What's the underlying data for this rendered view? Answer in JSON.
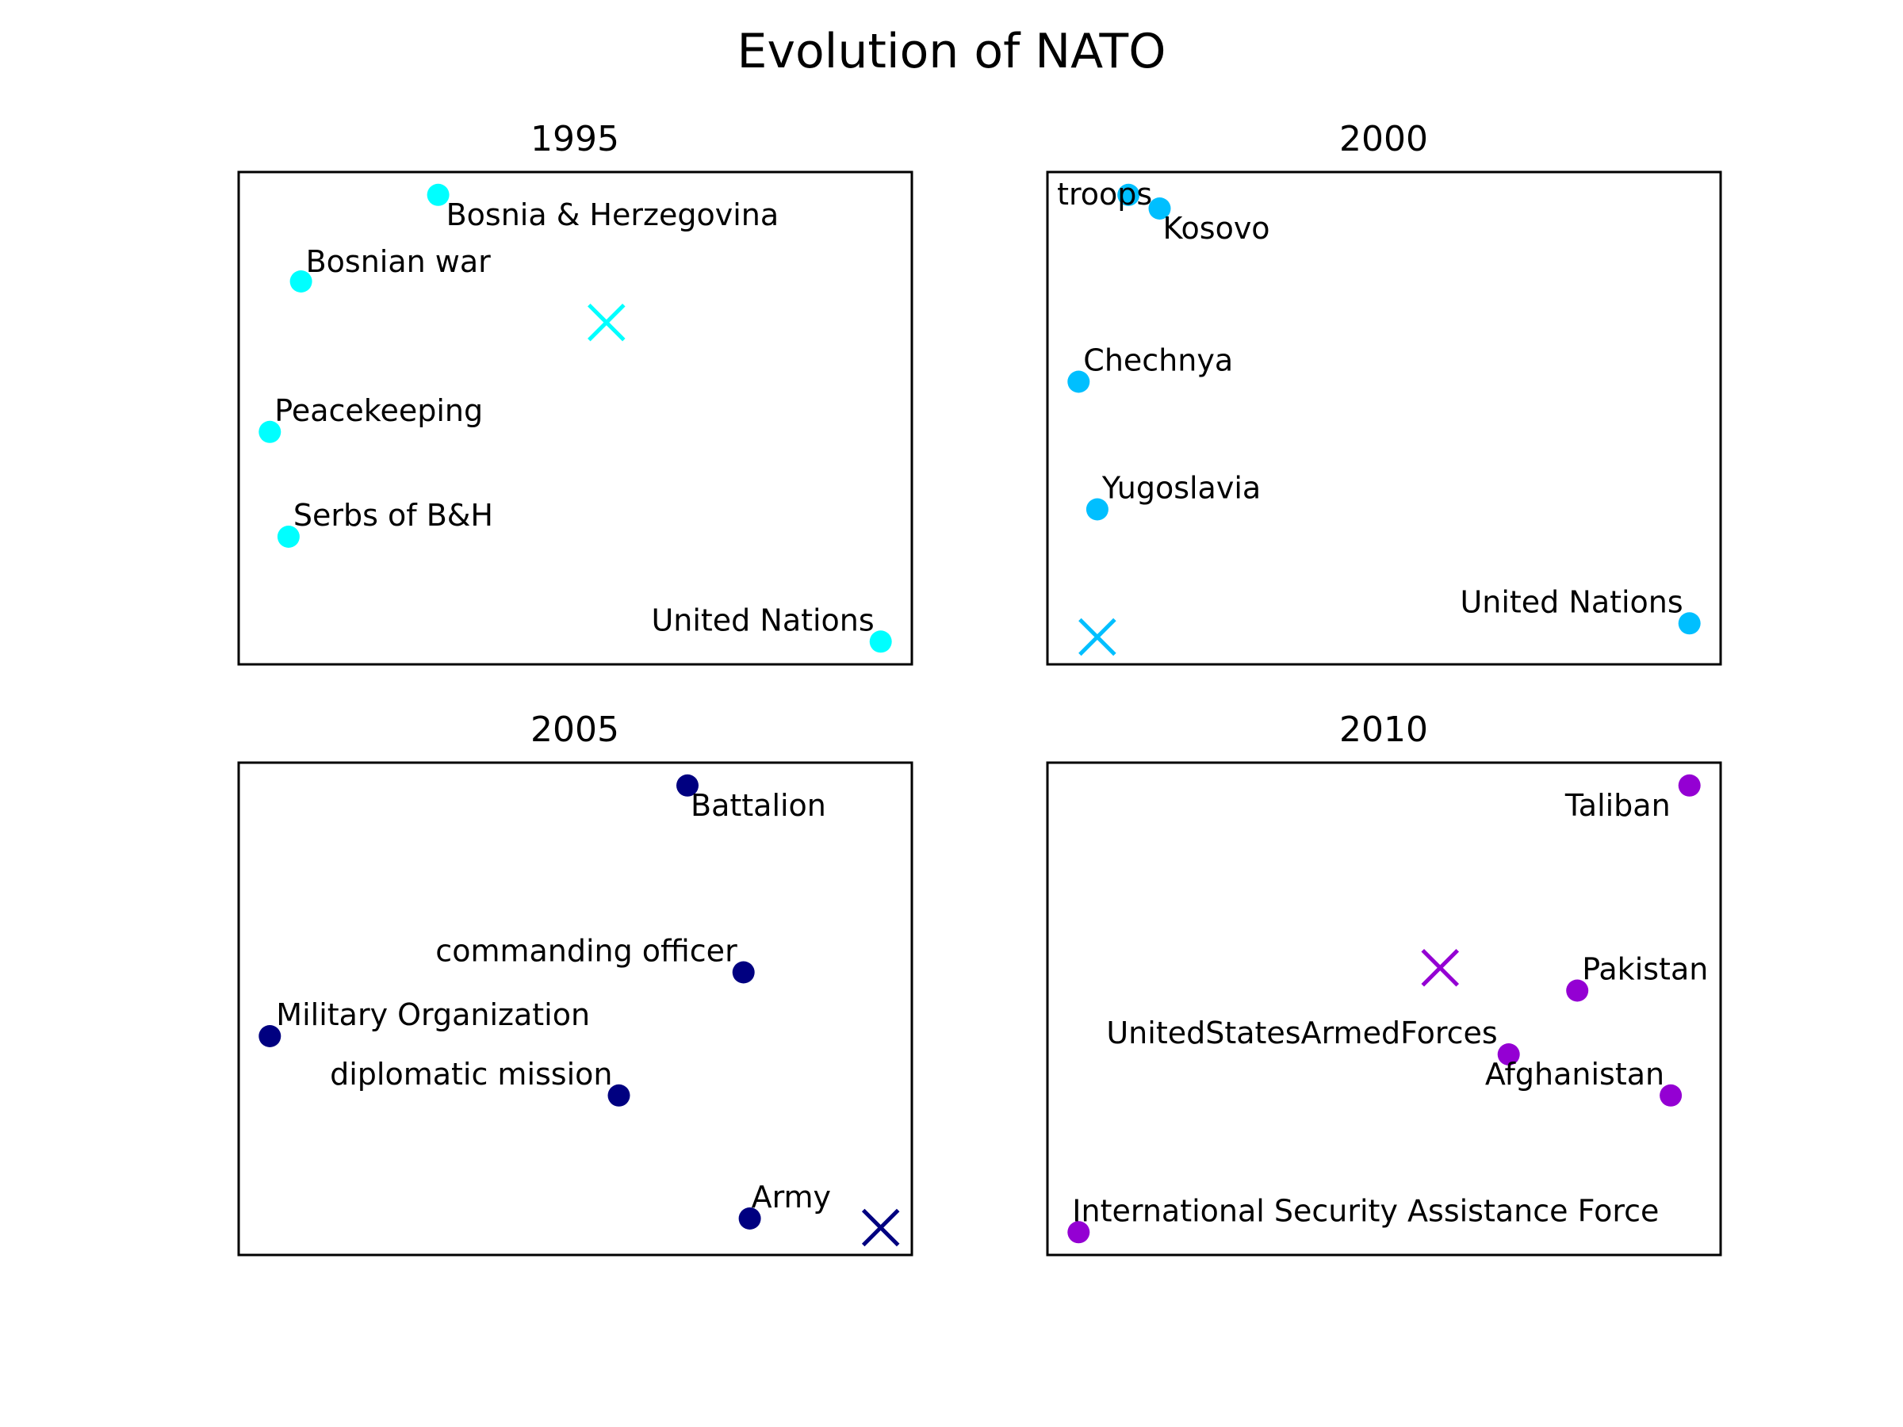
{
  "title": "Evolution of NATO",
  "chart_data": [
    {
      "type": "scatter",
      "title": "1995",
      "color": "#00ffff",
      "xlim": [
        0,
        10.8
      ],
      "ylim": [
        0,
        10.8
      ],
      "points": [
        {
          "label": "Bosnia & Herzegovina",
          "x": 3.2,
          "y": 10.3
        },
        {
          "label": "Bosnian war",
          "x": 1.0,
          "y": 8.4
        },
        {
          "label": "Peacekeeping",
          "x": 0.5,
          "y": 5.1
        },
        {
          "label": "Serbs of B&H",
          "x": 0.8,
          "y": 2.8
        },
        {
          "label": "United Nations",
          "x": 10.3,
          "y": 0.5
        }
      ],
      "centroid": {
        "x": 5.9,
        "y": 7.5
      }
    },
    {
      "type": "scatter",
      "title": "2000",
      "color": "#00bfff",
      "xlim": [
        0,
        10.8
      ],
      "ylim": [
        0,
        10.8
      ],
      "points": [
        {
          "label": "troops",
          "x": 1.3,
          "y": 10.3
        },
        {
          "label": "Kosovo",
          "x": 1.8,
          "y": 10.0
        },
        {
          "label": "Chechnya",
          "x": 0.5,
          "y": 6.2
        },
        {
          "label": "Yugoslavia",
          "x": 0.8,
          "y": 3.4
        },
        {
          "label": "United Nations",
          "x": 10.3,
          "y": 0.9
        }
      ],
      "centroid": {
        "x": 0.8,
        "y": 0.6
      }
    },
    {
      "type": "scatter",
      "title": "2005",
      "color": "#000080",
      "xlim": [
        0,
        10.8
      ],
      "ylim": [
        0,
        10.8
      ],
      "points": [
        {
          "label": "Battalion",
          "x": 7.2,
          "y": 10.3
        },
        {
          "label": "commanding officer",
          "x": 8.1,
          "y": 6.2
        },
        {
          "label": "Military Organization",
          "x": 0.5,
          "y": 4.8
        },
        {
          "label": "diplomatic mission",
          "x": 6.1,
          "y": 3.5
        },
        {
          "label": "Army",
          "x": 8.2,
          "y": 0.8
        }
      ],
      "centroid": {
        "x": 10.3,
        "y": 0.6
      }
    },
    {
      "type": "scatter",
      "title": "2010",
      "color": "#9400d3",
      "xlim": [
        0,
        10.8
      ],
      "ylim": [
        0,
        10.8
      ],
      "points": [
        {
          "label": "Taliban",
          "x": 10.3,
          "y": 10.3
        },
        {
          "label": "Pakistan",
          "x": 8.5,
          "y": 5.8
        },
        {
          "label": "UnitedStatesArmedForces",
          "x": 7.4,
          "y": 4.4
        },
        {
          "label": "Afghanistan",
          "x": 10.0,
          "y": 3.5
        },
        {
          "label": "International Security Assistance Force",
          "x": 0.5,
          "y": 0.5
        }
      ],
      "centroid": {
        "x": 6.3,
        "y": 6.3
      }
    }
  ]
}
